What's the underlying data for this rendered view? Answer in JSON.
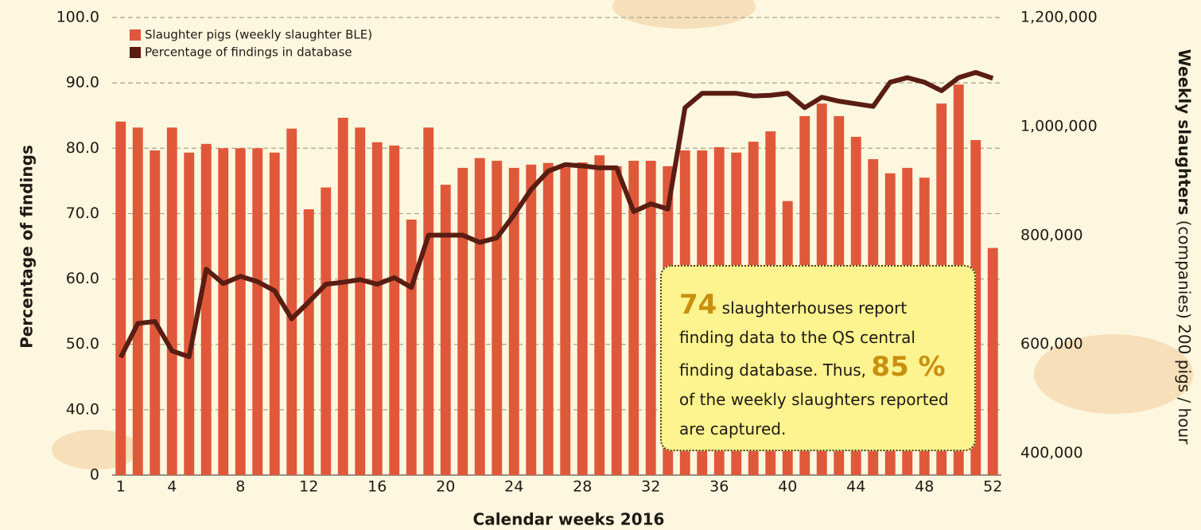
{
  "chart_data": {
    "type": "bar",
    "xlabel": "Calendar weeks 2016",
    "ylabel": "Percentage of findings",
    "y2label": {
      "bold": "Weekly slaughters",
      "rest": " (companies) 200 pigs / hour"
    },
    "x": [
      1,
      2,
      3,
      4,
      5,
      6,
      7,
      8,
      9,
      10,
      11,
      12,
      13,
      14,
      15,
      16,
      17,
      18,
      19,
      20,
      21,
      22,
      23,
      24,
      25,
      26,
      27,
      28,
      29,
      30,
      31,
      32,
      33,
      34,
      35,
      36,
      37,
      38,
      39,
      40,
      41,
      42,
      43,
      44,
      45,
      46,
      47,
      48,
      49,
      50,
      51,
      52
    ],
    "xlim": [
      0.5,
      52.5
    ],
    "xticks": [
      1,
      4,
      8,
      12,
      16,
      20,
      24,
      28,
      32,
      36,
      40,
      44,
      48,
      52
    ],
    "ylim": [
      0,
      100
    ],
    "y_break": [
      0,
      40
    ],
    "yticks": [
      0,
      {
        "value": 40,
        "label": "40.0"
      },
      {
        "value": 50,
        "label": "50.0"
      },
      {
        "value": 60,
        "label": "60.0"
      },
      {
        "value": 70,
        "label": "70.0"
      },
      {
        "value": 80,
        "label": "80.0"
      },
      {
        "value": 90,
        "label": "90.0"
      },
      {
        "value": 100,
        "label": "100.0"
      }
    ],
    "y2lim": [
      360000,
      1200000
    ],
    "y2ticks": [
      {
        "value": 400000,
        "label": "400,000"
      },
      {
        "value": 600000,
        "label": "600,000"
      },
      {
        "value": 800000,
        "label": "800,000"
      },
      {
        "value": 1000000,
        "label": "1,000,000"
      },
      {
        "value": 1200000,
        "label": "1,200,000"
      }
    ],
    "grid": true,
    "legend": "upper left",
    "series": [
      {
        "name": "Slaughter pigs (weekly slaughter BLE)",
        "type": "bar",
        "axis": "y2",
        "color": "#e0583a",
        "values": [
          1009000,
          998000,
          956000,
          998000,
          952000,
          968000,
          960000,
          960000,
          960000,
          952000,
          996000,
          848000,
          888000,
          1016000,
          998000,
          971000,
          965000,
          829000,
          998000,
          893000,
          924000,
          942000,
          937000,
          924000,
          930000,
          933000,
          925000,
          934000,
          947000,
          927000,
          937000,
          937000,
          927000,
          956000,
          956000,
          962000,
          952000,
          972000,
          991000,
          863000,
          1019000,
          1042000,
          1019000,
          981000,
          940000,
          914000,
          924000,
          906000,
          1042000,
          1077000,
          975000,
          777000
        ]
      },
      {
        "name": "Percentage of findings in database",
        "type": "line",
        "axis": "y",
        "color": "#5a1d12",
        "values": [
          48.0,
          53.2,
          53.5,
          49.0,
          48.1,
          61.5,
          59.3,
          60.4,
          59.6,
          58.2,
          53.9,
          56.5,
          59.2,
          59.5,
          59.9,
          59.2,
          60.2,
          58.7,
          66.7,
          66.7,
          66.7,
          65.6,
          66.3,
          69.8,
          73.7,
          76.5,
          77.5,
          77.3,
          77.0,
          77.0,
          70.3,
          71.5,
          70.7,
          86.2,
          88.4,
          88.4,
          88.4,
          88.0,
          88.1,
          88.4,
          86.2,
          87.8,
          87.2,
          86.8,
          86.4,
          90.1,
          90.8,
          90.1,
          88.8,
          90.8,
          91.6,
          90.7
        ]
      }
    ],
    "annotation": [
      "74",
      " slaughterhouses report finding data to the QS central finding database. Thus, ",
      "85 %",
      " of the weekly slaughters reported are captured."
    ]
  }
}
